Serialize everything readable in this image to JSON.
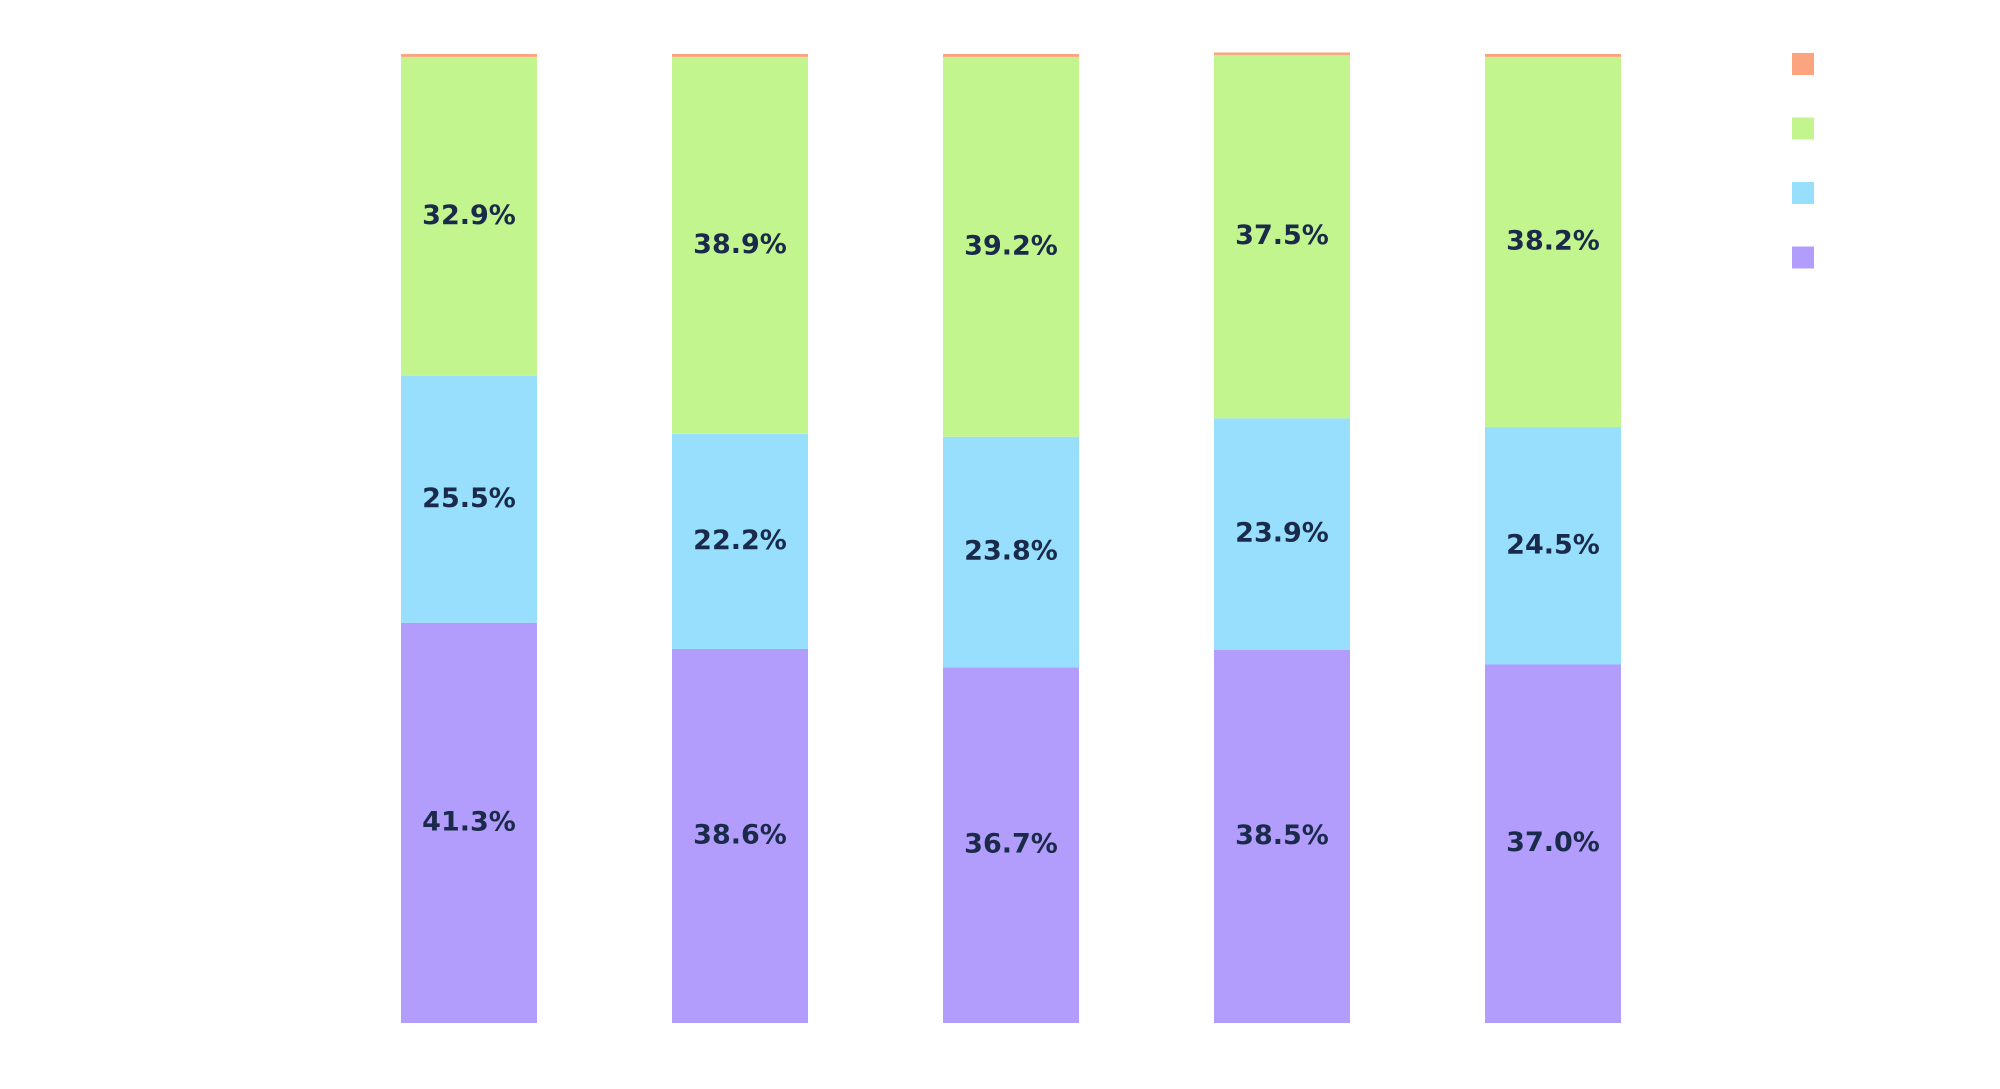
{
  "chart_data": {
    "type": "bar",
    "stacked": true,
    "percent": true,
    "orientation": "vertical",
    "categories": [
      "",
      "",
      "",
      "",
      ""
    ],
    "ylim": [
      0,
      100
    ],
    "grid": false,
    "legend_position": "top-right",
    "series": [
      {
        "values": [
          41.3,
          38.6,
          36.7,
          38.5,
          37.0
        ],
        "labels": [
          "41.3%",
          "38.6%",
          "36.7%",
          "38.5%",
          "37.0%"
        ],
        "color": "#b39dfc"
      },
      {
        "values": [
          25.5,
          22.2,
          23.8,
          23.9,
          24.5
        ],
        "labels": [
          "25.5%",
          "22.2%",
          "23.8%",
          "23.9%",
          "24.5%"
        ],
        "color": "#97dffc"
      },
      {
        "values": [
          32.9,
          38.9,
          39.2,
          37.5,
          38.2
        ],
        "labels": [
          "32.9%",
          "38.9%",
          "39.2%",
          "37.5%",
          "38.2%"
        ],
        "color": "#c3f58f"
      },
      {
        "values": [
          0.3,
          0.3,
          0.3,
          0.1,
          0.3
        ],
        "labels": [
          "",
          "",
          "",
          "",
          ""
        ],
        "color": "#fba47f"
      }
    ]
  }
}
